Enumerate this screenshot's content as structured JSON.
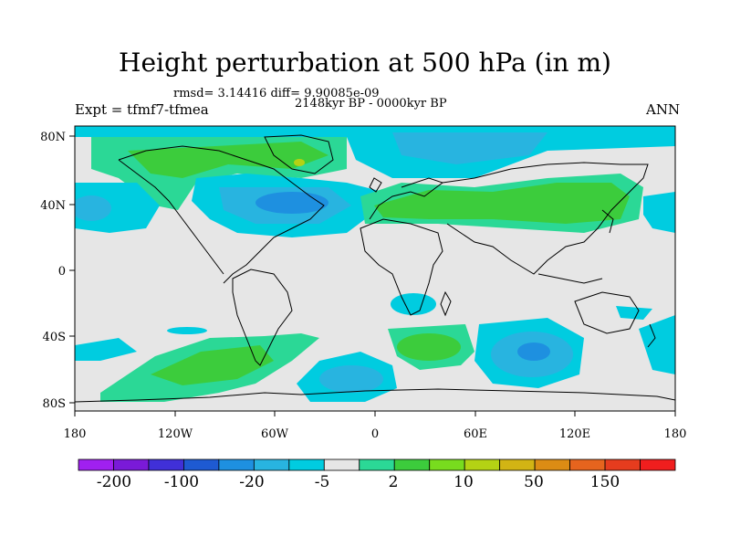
{
  "title": "Height perturbation at 500 hPa (in m)",
  "stats_text": "rmsd= 3.14416 diff= 9.90085e-09",
  "period": "2148kyr BP - 0000kyr BP",
  "experiment": "Expt = tfmf7-tfmea",
  "season": "ANN",
  "axes": {
    "lat_ticks": [
      "80N",
      "40N",
      "0",
      "40S",
      "80S"
    ],
    "lon_ticks": [
      "180",
      "120W",
      "60W",
      "0",
      "60E",
      "120E",
      "180"
    ]
  },
  "colorbar": {
    "labels": [
      "-200",
      "-100",
      "-20",
      "-5",
      "2",
      "10",
      "50",
      "150"
    ],
    "colors": [
      "#a020f0",
      "#7a1ad8",
      "#4030d8",
      "#1e5ad2",
      "#1e90e0",
      "#28b4e0",
      "#00cce0",
      "#e6e6e6",
      "#2bd896",
      "#3ccc3c",
      "#78dc1e",
      "#b4d214",
      "#d2b414",
      "#dc8c14",
      "#e6641e",
      "#e63c1e",
      "#f01e1e"
    ]
  },
  "colors": {
    "background": "#e6e6e6",
    "neg_light": "#00cce0",
    "neg_mid": "#28b4e0",
    "neg_dark": "#1e90e0",
    "pos_light": "#2bd896",
    "pos_mid": "#3ccc3c",
    "pos_strong": "#78dc1e",
    "pos_peak": "#b4d214"
  }
}
